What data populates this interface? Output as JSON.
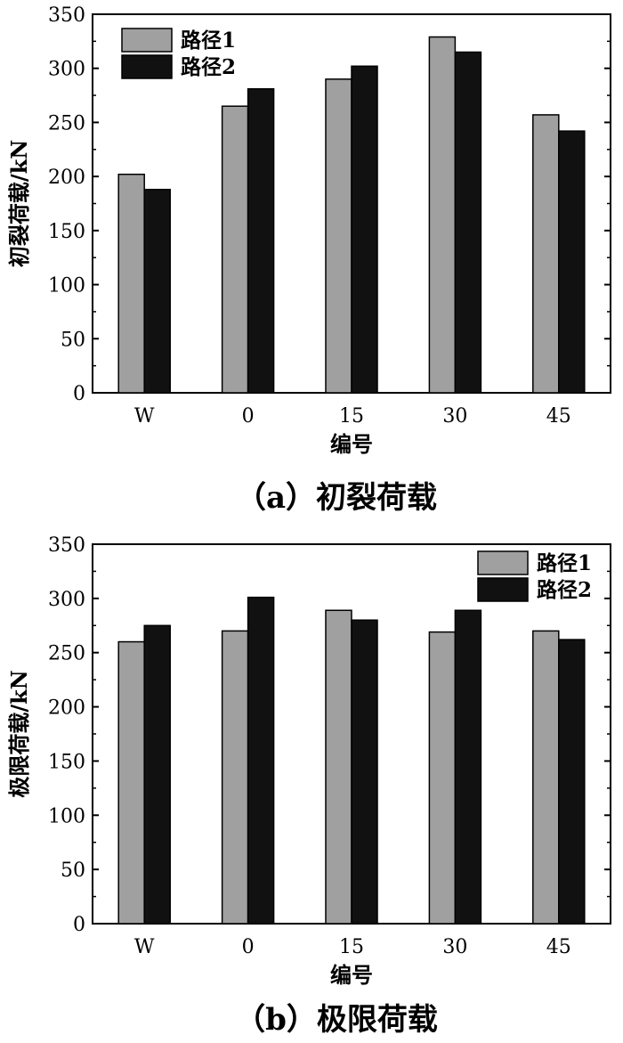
{
  "chart_data": [
    {
      "type": "bar",
      "caption": "（a）初裂荷载",
      "xlabel": "编号",
      "ylabel": "初裂荷载/kN",
      "categories": [
        "W",
        "0",
        "15",
        "30",
        "45"
      ],
      "series": [
        {
          "name": "路径1",
          "values": [
            202,
            265,
            290,
            329,
            257
          ]
        },
        {
          "name": "路径2",
          "values": [
            188,
            281,
            302,
            315,
            242
          ]
        }
      ],
      "ylim": [
        0,
        350
      ],
      "yticks": [
        0,
        50,
        100,
        150,
        200,
        250,
        300,
        350
      ],
      "legend_position": "top-left",
      "grid": false,
      "colors": {
        "series1": "#a0a0a0",
        "series2": "#111111"
      }
    },
    {
      "type": "bar",
      "caption": "（b）极限荷载",
      "xlabel": "编号",
      "ylabel": "极限荷载/kN",
      "categories": [
        "W",
        "0",
        "15",
        "30",
        "45"
      ],
      "series": [
        {
          "name": "路径1",
          "values": [
            260,
            270,
            289,
            269,
            270
          ]
        },
        {
          "name": "路径2",
          "values": [
            275,
            301,
            280,
            289,
            262
          ]
        }
      ],
      "ylim": [
        0,
        350
      ],
      "yticks": [
        0,
        50,
        100,
        150,
        200,
        250,
        300,
        350
      ],
      "legend_position": "top-right",
      "grid": false,
      "colors": {
        "series1": "#a0a0a0",
        "series2": "#111111"
      }
    }
  ]
}
